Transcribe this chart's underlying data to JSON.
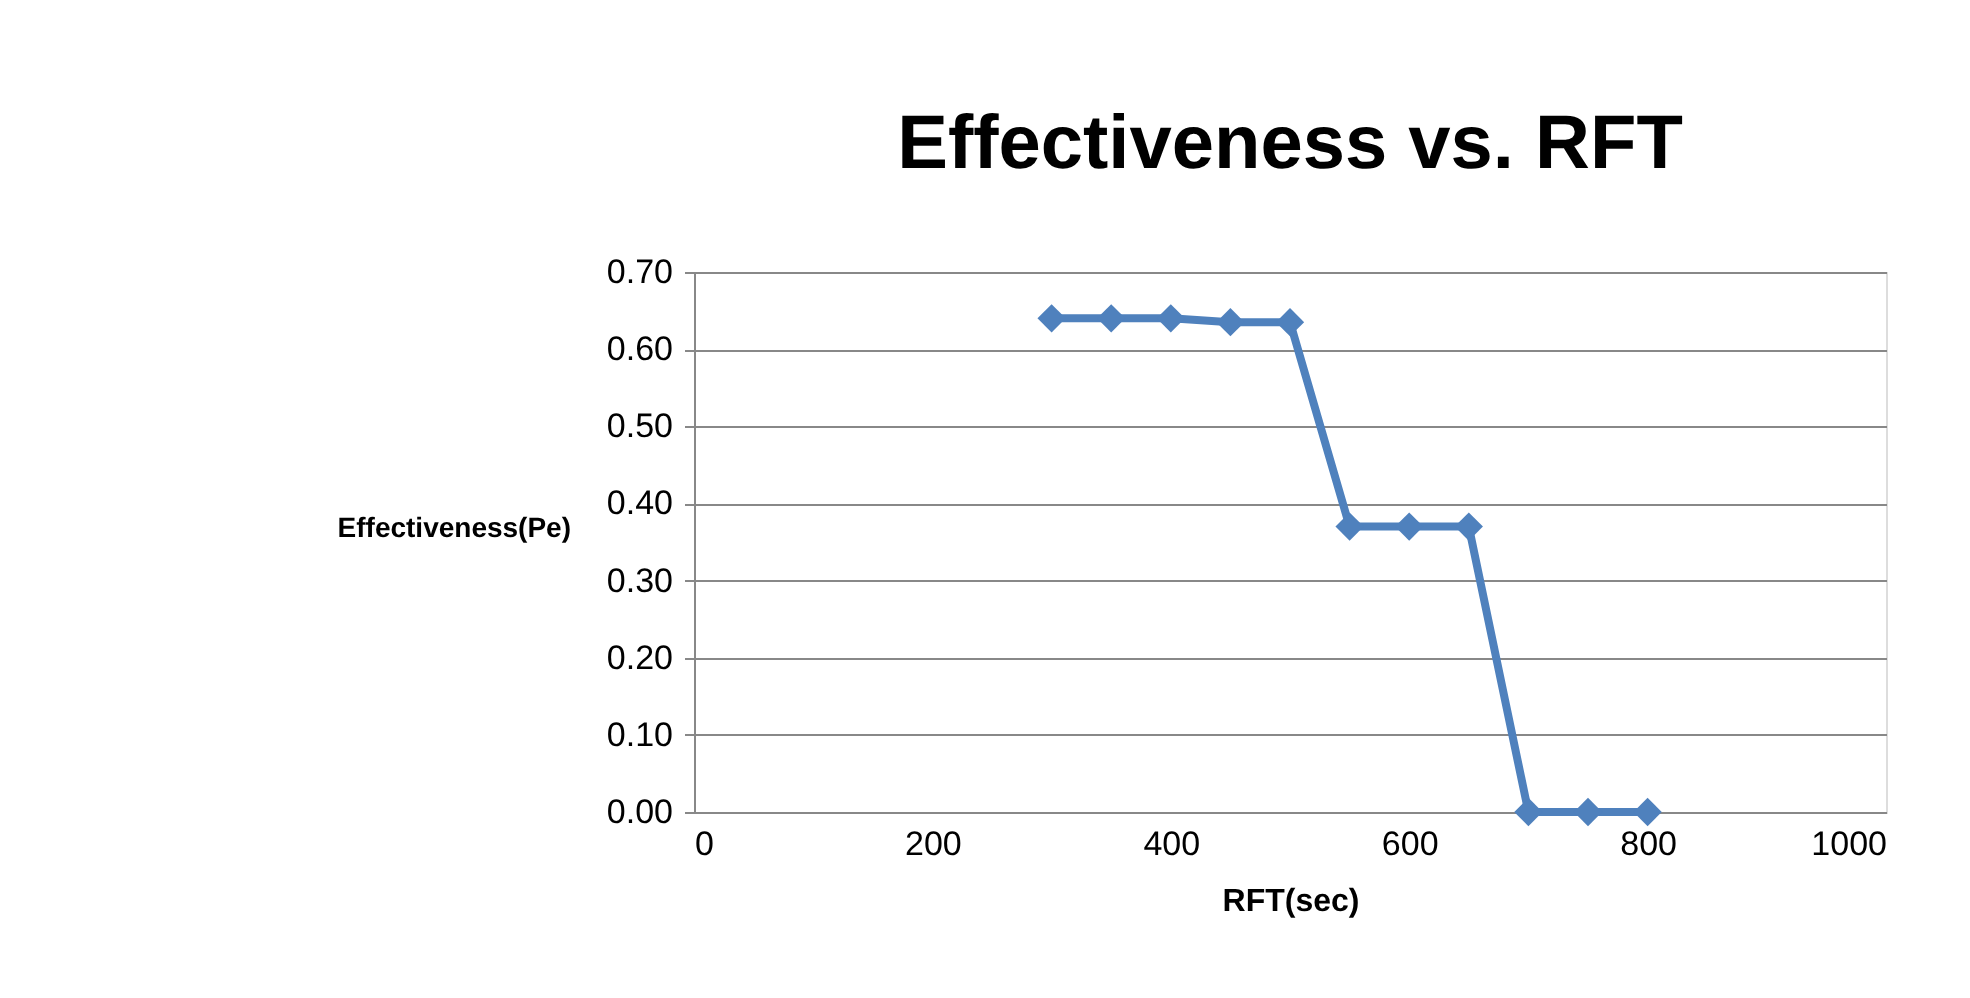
{
  "chart_data": {
    "type": "line",
    "title": "Effectiveness vs. RFT",
    "xlabel": "RFT(sec)",
    "ylabel": "Effectiveness(Pe)",
    "x": [
      300,
      350,
      400,
      450,
      500,
      550,
      600,
      650,
      700,
      750,
      800
    ],
    "series": [
      {
        "color": "#4f81bd",
        "values": [
          0.64,
          0.64,
          0.64,
          0.635,
          0.635,
          0.37,
          0.37,
          0.37,
          0.0,
          0.0,
          0.0
        ]
      }
    ],
    "xlim": [
      0,
      1000
    ],
    "xticks": [
      0,
      200,
      400,
      600,
      800,
      1000
    ],
    "ylim": [
      0,
      0.7
    ],
    "yticks": [
      {
        "value": 0,
        "label": "0.00"
      },
      {
        "value": 0.1,
        "label": "0.10"
      },
      {
        "value": 0.2,
        "label": "0.20"
      },
      {
        "value": 0.3,
        "label": "0.30"
      },
      {
        "value": 0.4,
        "label": "0.40"
      },
      {
        "value": 0.5,
        "label": "0.50"
      },
      {
        "value": 0.6,
        "label": "0.60"
      },
      {
        "value": 0.7,
        "label": "0.70"
      }
    ],
    "grid": "y",
    "marker": "diamond",
    "line_style": "solid"
  }
}
